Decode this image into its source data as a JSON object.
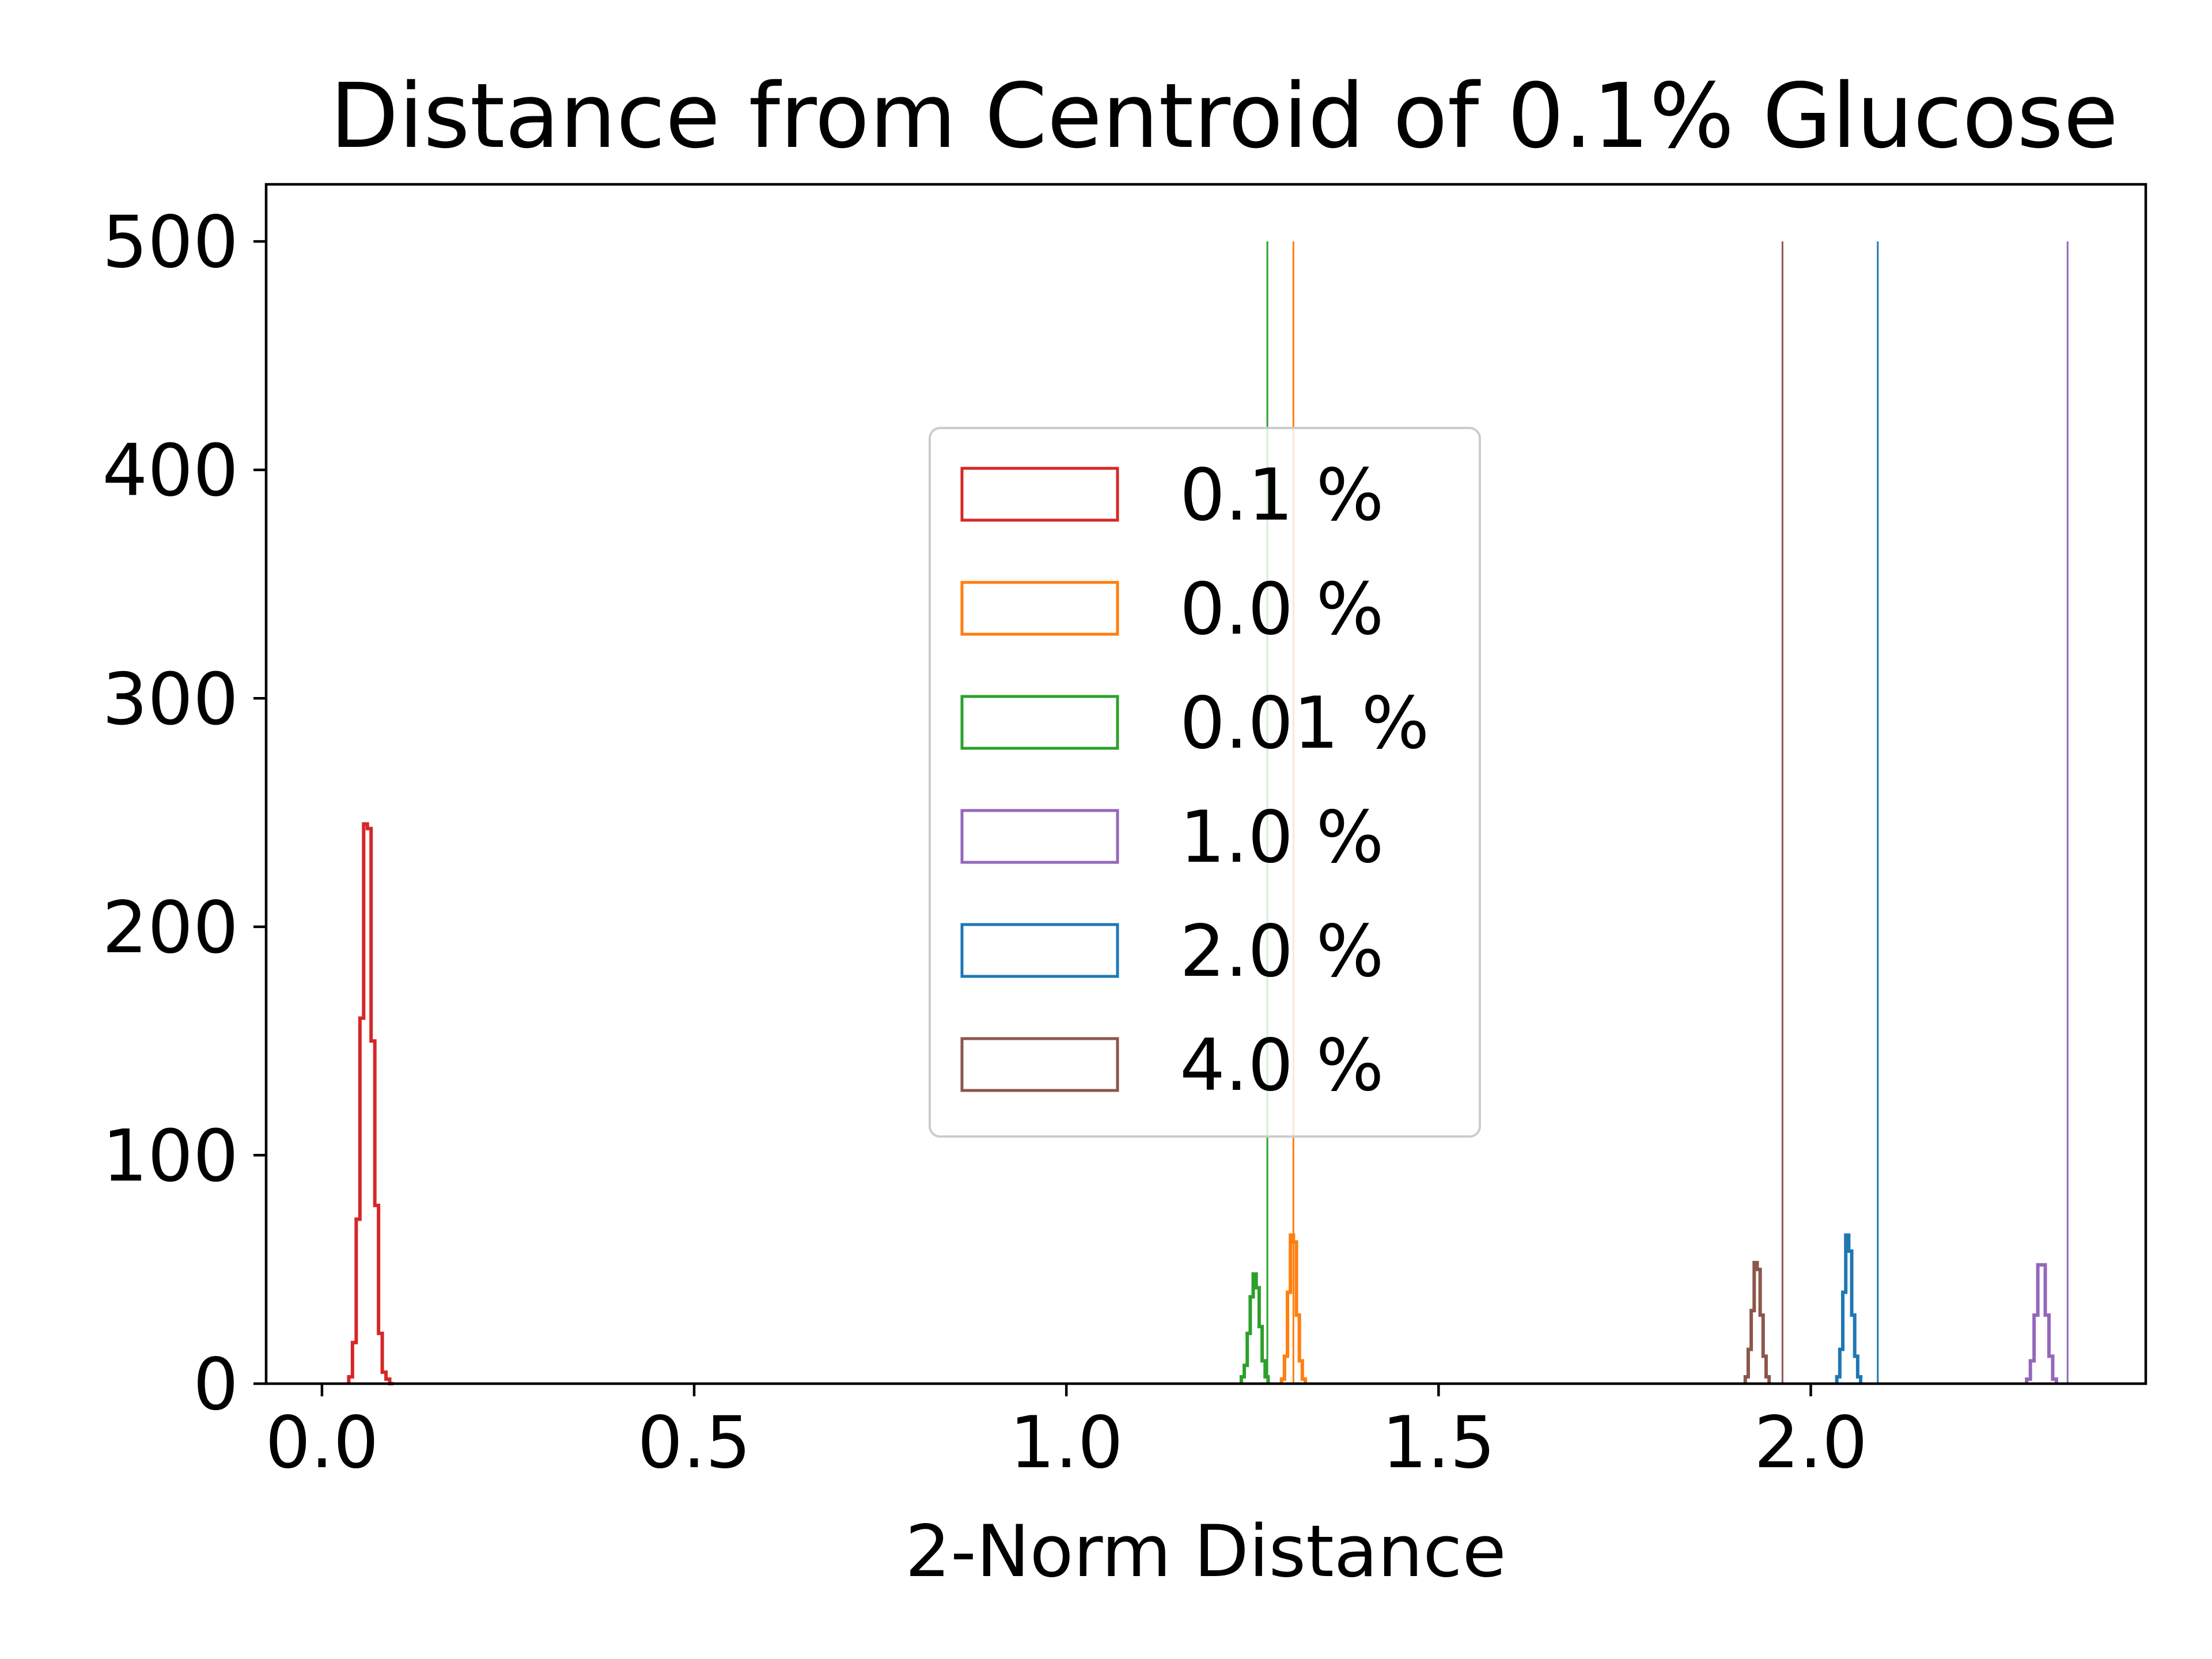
{
  "chart_data": {
    "type": "histogram",
    "title": "Distance from Centroid of 0.1% Glucose",
    "xlabel": "2-Norm Distance",
    "ylabel": "",
    "xlim": [
      -0.075,
      2.45
    ],
    "ylim": [
      0,
      525
    ],
    "xticks": [
      0.0,
      0.5,
      1.0,
      1.5,
      2.0
    ],
    "xtick_labels": [
      "0.0",
      "0.5",
      "1.0",
      "1.5",
      "2.0"
    ],
    "yticks": [
      0,
      100,
      200,
      300,
      400,
      500
    ],
    "ytick_labels": [
      "0",
      "100",
      "200",
      "300",
      "400",
      "500"
    ],
    "grid": false,
    "legend_position": "center",
    "series": [
      {
        "name": "0.1 %",
        "color": "#d62728",
        "bin_edges": [
          0.036,
          0.041,
          0.046,
          0.051,
          0.056,
          0.061,
          0.066,
          0.071,
          0.076,
          0.081,
          0.086,
          0.091,
          0.096
        ],
        "counts": [
          3,
          18,
          72,
          160,
          245,
          243,
          150,
          78,
          22,
          5,
          2,
          0
        ],
        "threshold": null
      },
      {
        "name": "0.0 %",
        "color": "#ff7f0e",
        "bin_edges": [
          1.289,
          1.293,
          1.297,
          1.301,
          1.305,
          1.309,
          1.313,
          1.317,
          1.321
        ],
        "counts": [
          2,
          12,
          40,
          65,
          62,
          30,
          10,
          2
        ],
        "threshold": 1.305
      },
      {
        "name": "0.01 %",
        "color": "#2ca02c",
        "bin_edges": [
          1.235,
          1.239,
          1.243,
          1.247,
          1.251,
          1.255,
          1.259,
          1.263,
          1.267,
          1.271
        ],
        "counts": [
          3,
          8,
          22,
          38,
          48,
          42,
          25,
          10,
          3
        ],
        "threshold": 1.27
      },
      {
        "name": "1.0 %",
        "color": "#9467bd",
        "bin_edges": [
          2.29,
          2.295,
          2.3,
          2.305,
          2.31,
          2.315,
          2.32,
          2.325,
          2.33
        ],
        "counts": [
          2,
          10,
          30,
          52,
          52,
          30,
          12,
          2
        ],
        "threshold": 2.345
      },
      {
        "name": "2.0 %",
        "color": "#1f77b4",
        "bin_edges": [
          2.035,
          2.039,
          2.043,
          2.047,
          2.051,
          2.055,
          2.059,
          2.063,
          2.067
        ],
        "counts": [
          3,
          15,
          40,
          65,
          58,
          30,
          12,
          3
        ],
        "threshold": 2.09
      },
      {
        "name": "4.0 %",
        "color": "#8c564b",
        "bin_edges": [
          1.912,
          1.916,
          1.92,
          1.924,
          1.928,
          1.932,
          1.936,
          1.94,
          1.944
        ],
        "counts": [
          3,
          15,
          32,
          53,
          50,
          30,
          12,
          3
        ],
        "threshold": 1.962
      }
    ]
  }
}
